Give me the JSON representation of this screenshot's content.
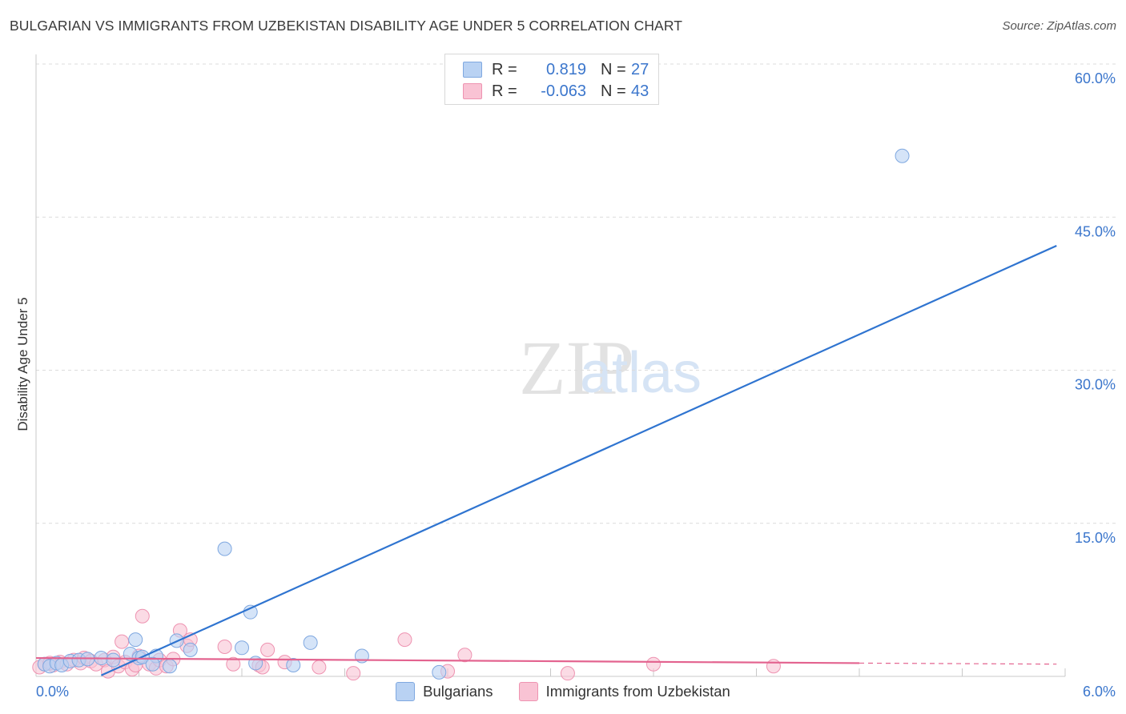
{
  "title": "BULGARIAN VS IMMIGRANTS FROM UZBEKISTAN DISABILITY AGE UNDER 5 CORRELATION CHART",
  "source": "Source: ZipAtlas.com",
  "watermark": {
    "zip": "ZIP",
    "atlas": "atlas"
  },
  "legend_box": {
    "rows": [
      {
        "r_label": "R =",
        "r_value": "0.819",
        "n_label": "N =",
        "n_value": "27"
      },
      {
        "r_label": "R =",
        "r_value": "-0.063",
        "n_label": "N =",
        "n_value": "43"
      }
    ]
  },
  "colors": {
    "bulgarians_fill": "#b9d2f3",
    "bulgarians_stroke": "#7fa8e0",
    "bulgarians_line": "#2f74d0",
    "uzbek_fill": "#f9c3d4",
    "uzbek_stroke": "#ee93b1",
    "uzbek_line": "#e3638f",
    "tick_text": "#3b76cc",
    "grid": "#dcdcdc"
  },
  "chart_data": {
    "type": "scatter",
    "title": "BULGARIAN VS IMMIGRANTS FROM UZBEKISTAN DISABILITY AGE UNDER 5 CORRELATION CHART",
    "xlabel": "",
    "ylabel": "Disability Age Under 5",
    "xlim": [
      0,
      6
    ],
    "ylim": [
      0,
      60
    ],
    "x_tick_labels": [
      "0.0%",
      "6.0%"
    ],
    "y_tick_labels": [
      "15.0%",
      "30.0%",
      "45.0%",
      "60.0%"
    ],
    "y_ticks": [
      15,
      30,
      45,
      60
    ],
    "grid": true,
    "legend_position": "bottom",
    "series": [
      {
        "name": "Bulgarians",
        "r": 0.819,
        "n": 27,
        "trend": {
          "x": [
            0.38,
            5.95
          ],
          "y": [
            0.1,
            42.2
          ]
        },
        "points": [
          {
            "x": 0.05,
            "y": 1.2
          },
          {
            "x": 0.08,
            "y": 1.0
          },
          {
            "x": 0.12,
            "y": 1.3
          },
          {
            "x": 0.15,
            "y": 1.1
          },
          {
            "x": 0.2,
            "y": 1.5
          },
          {
            "x": 0.25,
            "y": 1.6
          },
          {
            "x": 0.3,
            "y": 1.7
          },
          {
            "x": 0.38,
            "y": 1.8
          },
          {
            "x": 0.45,
            "y": 1.6
          },
          {
            "x": 0.55,
            "y": 2.2
          },
          {
            "x": 0.6,
            "y": 1.8
          },
          {
            "x": 0.62,
            "y": 1.9
          },
          {
            "x": 0.7,
            "y": 2.0
          },
          {
            "x": 0.58,
            "y": 3.6
          },
          {
            "x": 0.68,
            "y": 1.2
          },
          {
            "x": 0.78,
            "y": 1.0
          },
          {
            "x": 0.9,
            "y": 2.6
          },
          {
            "x": 0.82,
            "y": 3.5
          },
          {
            "x": 1.1,
            "y": 12.5
          },
          {
            "x": 1.2,
            "y": 2.8
          },
          {
            "x": 1.25,
            "y": 6.3
          },
          {
            "x": 1.28,
            "y": 1.3
          },
          {
            "x": 1.5,
            "y": 1.1
          },
          {
            "x": 1.6,
            "y": 3.3
          },
          {
            "x": 1.9,
            "y": 2.0
          },
          {
            "x": 2.35,
            "y": 0.4
          },
          {
            "x": 5.05,
            "y": 51.0
          }
        ]
      },
      {
        "name": "Immigrants from Uzbekistan",
        "r": -0.063,
        "n": 43,
        "trend": {
          "x": [
            0.0,
            4.8
          ],
          "y": [
            1.8,
            1.3
          ]
        },
        "trend_dashed": {
          "x": [
            4.8,
            5.95
          ],
          "y": [
            1.3,
            1.2
          ]
        },
        "points": [
          {
            "x": 0.02,
            "y": 0.9
          },
          {
            "x": 0.05,
            "y": 1.2
          },
          {
            "x": 0.1,
            "y": 1.1
          },
          {
            "x": 0.14,
            "y": 1.4
          },
          {
            "x": 0.18,
            "y": 1.2
          },
          {
            "x": 0.22,
            "y": 1.6
          },
          {
            "x": 0.26,
            "y": 1.3
          },
          {
            "x": 0.28,
            "y": 1.8
          },
          {
            "x": 0.32,
            "y": 1.5
          },
          {
            "x": 0.35,
            "y": 1.2
          },
          {
            "x": 0.4,
            "y": 1.6
          },
          {
            "x": 0.42,
            "y": 0.5
          },
          {
            "x": 0.45,
            "y": 1.9
          },
          {
            "x": 0.48,
            "y": 1.0
          },
          {
            "x": 0.5,
            "y": 3.4
          },
          {
            "x": 0.52,
            "y": 1.4
          },
          {
            "x": 0.56,
            "y": 0.7
          },
          {
            "x": 0.58,
            "y": 1.1
          },
          {
            "x": 0.6,
            "y": 2.0
          },
          {
            "x": 0.62,
            "y": 5.9
          },
          {
            "x": 0.66,
            "y": 1.2
          },
          {
            "x": 0.7,
            "y": 0.8
          },
          {
            "x": 0.72,
            "y": 1.6
          },
          {
            "x": 0.76,
            "y": 1.0
          },
          {
            "x": 0.8,
            "y": 1.7
          },
          {
            "x": 0.84,
            "y": 4.5
          },
          {
            "x": 0.88,
            "y": 3.0
          },
          {
            "x": 0.9,
            "y": 3.6
          },
          {
            "x": 1.1,
            "y": 2.9
          },
          {
            "x": 1.15,
            "y": 1.2
          },
          {
            "x": 1.3,
            "y": 1.1
          },
          {
            "x": 1.32,
            "y": 0.9
          },
          {
            "x": 1.35,
            "y": 2.6
          },
          {
            "x": 1.45,
            "y": 1.4
          },
          {
            "x": 1.65,
            "y": 0.9
          },
          {
            "x": 1.85,
            "y": 0.3
          },
          {
            "x": 2.15,
            "y": 3.6
          },
          {
            "x": 2.4,
            "y": 0.5
          },
          {
            "x": 2.5,
            "y": 2.1
          },
          {
            "x": 3.1,
            "y": 0.3
          },
          {
            "x": 3.6,
            "y": 1.2
          },
          {
            "x": 4.3,
            "y": 1.0
          },
          {
            "x": 0.08,
            "y": 1.3
          }
        ]
      }
    ]
  },
  "bottom_legend": {
    "items": [
      {
        "label": "Bulgarians"
      },
      {
        "label": "Immigrants from Uzbekistan"
      }
    ]
  }
}
